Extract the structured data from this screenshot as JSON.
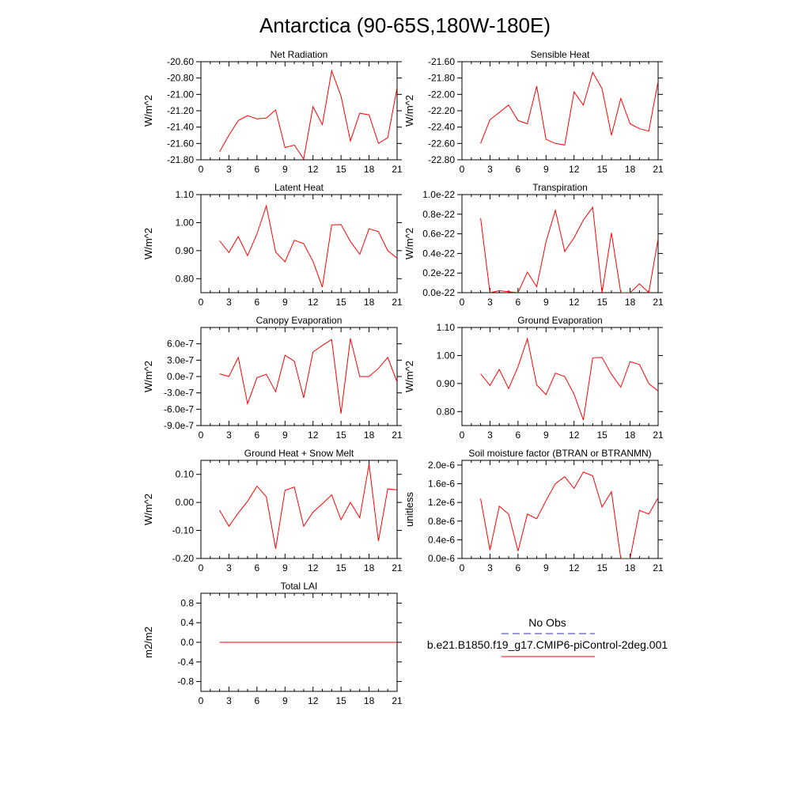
{
  "figure": {
    "title": "Antarctica (90-65S,180W-180E)",
    "legend": {
      "title": "No Obs",
      "entries": [
        {
          "label": "",
          "color": "#3333aa",
          "dash": true
        },
        {
          "label": "b.e21.B1850.f19_g17.CMIP6-piControl-2deg.001",
          "color": "#ff0000",
          "dash": false
        }
      ]
    }
  },
  "chart_data": [
    {
      "type": "line",
      "title": "Net Radiation",
      "ylabel": "W/m^2",
      "xlim": [
        0,
        21
      ],
      "ylim": [
        -21.8,
        -20.6
      ],
      "xticks": [
        0,
        3,
        6,
        9,
        12,
        15,
        18,
        21
      ],
      "yticks": [
        -21.8,
        -21.6,
        -21.4,
        -21.2,
        -21.0,
        -20.8,
        -20.6
      ],
      "ytick_labels": [
        "-21.80",
        "-21.60",
        "-21.40",
        "-21.20",
        "-21.00",
        "-20.80",
        "-20.60"
      ],
      "series": [
        {
          "color": "#ff0000",
          "x": [
            2,
            3,
            4,
            5,
            6,
            7,
            8,
            9,
            10,
            11,
            12,
            13,
            14,
            15,
            16,
            17,
            18,
            19,
            20,
            21
          ],
          "y": [
            -21.7,
            -21.5,
            -21.32,
            -21.26,
            -21.3,
            -21.29,
            -21.19,
            -21.65,
            -21.62,
            -21.79,
            -21.15,
            -21.37,
            -20.71,
            -21.02,
            -21.57,
            -21.23,
            -21.25,
            -21.6,
            -21.53,
            -20.92
          ]
        }
      ]
    },
    {
      "type": "line",
      "title": "Sensible Heat",
      "ylabel": "W/m^2",
      "xlim": [
        0,
        21
      ],
      "ylim": [
        -22.8,
        -21.6
      ],
      "xticks": [
        0,
        3,
        6,
        9,
        12,
        15,
        18,
        21
      ],
      "yticks": [
        -22.8,
        -22.6,
        -22.4,
        -22.2,
        -22.0,
        -21.8,
        -21.6
      ],
      "ytick_labels": [
        "-22.80",
        "-22.60",
        "-22.40",
        "-22.20",
        "-22.00",
        "-21.80",
        "-21.60"
      ],
      "series": [
        {
          "color": "#ff0000",
          "x": [
            2,
            3,
            4,
            5,
            6,
            7,
            8,
            9,
            10,
            11,
            12,
            13,
            14,
            15,
            16,
            17,
            18,
            19,
            20,
            21
          ],
          "y": [
            -22.6,
            -22.31,
            -22.22,
            -22.13,
            -22.32,
            -22.36,
            -21.9,
            -22.55,
            -22.6,
            -22.62,
            -21.97,
            -22.13,
            -21.73,
            -21.93,
            -22.5,
            -22.05,
            -22.36,
            -22.42,
            -22.45,
            -21.84
          ]
        }
      ]
    },
    {
      "type": "line",
      "title": "Latent Heat",
      "ylabel": "W/m^2",
      "xlim": [
        0,
        21
      ],
      "ylim": [
        0.75,
        1.1
      ],
      "xticks": [
        0,
        3,
        6,
        9,
        12,
        15,
        18,
        21
      ],
      "yticks": [
        0.8,
        0.9,
        1.0,
        1.1
      ],
      "ytick_labels": [
        "0.80",
        "0.90",
        "1.00",
        "1.10"
      ],
      "series": [
        {
          "color": "#ff0000",
          "x": [
            2,
            3,
            4,
            5,
            6,
            7,
            8,
            9,
            10,
            11,
            12,
            13,
            14,
            15,
            16,
            17,
            18,
            19,
            20,
            21
          ],
          "y": [
            0.935,
            0.893,
            0.95,
            0.882,
            0.96,
            1.06,
            0.895,
            0.86,
            0.937,
            0.925,
            0.862,
            0.77,
            0.992,
            0.993,
            0.933,
            0.887,
            0.978,
            0.968,
            0.9,
            0.873
          ]
        }
      ]
    },
    {
      "type": "line",
      "title": "Transpiration",
      "ylabel": "W/m^2",
      "xlim": [
        0,
        21
      ],
      "ylim": [
        0.0,
        1.0
      ],
      "xticks": [
        0,
        3,
        6,
        9,
        12,
        15,
        18,
        21
      ],
      "yticks": [
        0.0,
        0.2,
        0.4,
        0.6,
        0.8,
        1.0
      ],
      "ytick_labels": [
        "0.0e-22",
        "0.2e-22",
        "0.4e-22",
        "0.6e-22",
        "0.8e-22",
        "1.0e-22"
      ],
      "series": [
        {
          "color": "#ff0000",
          "x": [
            2,
            3,
            4,
            5,
            6,
            7,
            8,
            9,
            10,
            11,
            12,
            13,
            14,
            15,
            16,
            17,
            18,
            19,
            20,
            21
          ],
          "y": [
            0.76,
            0.0,
            0.02,
            0.01,
            0.0,
            0.21,
            0.06,
            0.52,
            0.84,
            0.42,
            0.56,
            0.74,
            0.87,
            0.0,
            0.61,
            0.0,
            0.0,
            0.09,
            0.0,
            0.55
          ]
        }
      ]
    },
    {
      "type": "line",
      "title": "Canopy Evaporation",
      "ylabel": "W/m^2",
      "xlim": [
        0,
        21
      ],
      "ylim": [
        -9.0,
        9.0
      ],
      "xticks": [
        0,
        3,
        6,
        9,
        12,
        15,
        18,
        21
      ],
      "yticks": [
        -9.0,
        -6.0,
        -3.0,
        0.0,
        3.0,
        6.0
      ],
      "ytick_labels": [
        "-9.0e-7",
        "-6.0e-7",
        "-3.0e-7",
        "0.0e-7",
        "3.0e-7",
        "6.0e-7"
      ],
      "series": [
        {
          "color": "#ff0000",
          "x": [
            2,
            3,
            4,
            5,
            6,
            7,
            8,
            9,
            10,
            11,
            12,
            13,
            14,
            15,
            16,
            17,
            18,
            19,
            20,
            21
          ],
          "y": [
            0.5,
            0.0,
            3.5,
            -5.0,
            -0.2,
            0.4,
            -2.8,
            3.9,
            2.8,
            -3.9,
            4.5,
            5.7,
            6.8,
            -6.8,
            7.0,
            0.0,
            0.0,
            1.5,
            3.5,
            -1.0
          ]
        }
      ]
    },
    {
      "type": "line",
      "title": "Ground Evaporation",
      "ylabel": "W/m^2",
      "xlim": [
        0,
        21
      ],
      "ylim": [
        0.75,
        1.1
      ],
      "xticks": [
        0,
        3,
        6,
        9,
        12,
        15,
        18,
        21
      ],
      "yticks": [
        0.8,
        0.9,
        1.0,
        1.1
      ],
      "ytick_labels": [
        "0.80",
        "0.90",
        "1.00",
        "1.10"
      ],
      "series": [
        {
          "color": "#ff0000",
          "x": [
            2,
            3,
            4,
            5,
            6,
            7,
            8,
            9,
            10,
            11,
            12,
            13,
            14,
            15,
            16,
            17,
            18,
            19,
            20,
            21
          ],
          "y": [
            0.935,
            0.893,
            0.95,
            0.882,
            0.96,
            1.06,
            0.895,
            0.86,
            0.937,
            0.925,
            0.862,
            0.77,
            0.992,
            0.993,
            0.933,
            0.887,
            0.978,
            0.968,
            0.9,
            0.873
          ]
        }
      ]
    },
    {
      "type": "line",
      "title": "Ground Heat + Snow Melt",
      "ylabel": "W/m^2",
      "xlim": [
        0,
        21
      ],
      "ylim": [
        -0.2,
        0.15
      ],
      "xticks": [
        0,
        3,
        6,
        9,
        12,
        15,
        18,
        21
      ],
      "yticks": [
        -0.2,
        -0.1,
        0.0,
        0.1
      ],
      "ytick_labels": [
        "-0.20",
        "-0.10",
        "0.00",
        "0.10"
      ],
      "series": [
        {
          "color": "#ff0000",
          "x": [
            2,
            3,
            4,
            5,
            6,
            7,
            8,
            9,
            10,
            11,
            12,
            13,
            14,
            15,
            16,
            17,
            18,
            19,
            20,
            21
          ],
          "y": [
            -0.028,
            -0.085,
            -0.038,
            0.004,
            0.058,
            0.02,
            -0.165,
            0.043,
            0.055,
            -0.085,
            -0.035,
            -0.005,
            0.027,
            -0.062,
            0.0,
            -0.055,
            0.137,
            -0.138,
            0.048,
            0.045
          ]
        }
      ]
    },
    {
      "type": "line",
      "title": "Soil moisture factor (BTRAN or BTRANMN)",
      "ylabel": "unitless",
      "xlim": [
        0,
        21
      ],
      "ylim": [
        0.0,
        2.1
      ],
      "xticks": [
        0,
        3,
        6,
        9,
        12,
        15,
        18,
        21
      ],
      "yticks": [
        0.0,
        0.4,
        0.8,
        1.2,
        1.6,
        2.0
      ],
      "ytick_labels": [
        "0.0e-6",
        "0.4e-6",
        "0.8e-6",
        "1.2e-6",
        "1.6e-6",
        "2.0e-6"
      ],
      "series": [
        {
          "color": "#ff0000",
          "x": [
            2,
            3,
            4,
            5,
            6,
            7,
            8,
            9,
            10,
            11,
            12,
            13,
            14,
            15,
            16,
            17,
            18,
            19,
            20,
            21
          ],
          "y": [
            1.28,
            0.18,
            1.12,
            0.95,
            0.16,
            0.95,
            0.85,
            1.24,
            1.6,
            1.75,
            1.5,
            1.85,
            1.77,
            1.1,
            1.43,
            0.0,
            0.0,
            1.03,
            0.95,
            1.3
          ]
        }
      ]
    },
    {
      "type": "line",
      "title": "Total LAI",
      "ylabel": "m2/m2",
      "xlim": [
        0,
        21
      ],
      "ylim": [
        -1.0,
        1.0
      ],
      "xticks": [
        0,
        3,
        6,
        9,
        12,
        15,
        18,
        21
      ],
      "yticks": [
        -0.8,
        -0.4,
        0.0,
        0.4,
        0.8
      ],
      "ytick_labels": [
        "-0.8",
        "-0.4",
        "0.0",
        "0.4",
        "0.8"
      ],
      "series": [
        {
          "color": "#ff0000",
          "x": [
            2,
            3,
            4,
            5,
            6,
            7,
            8,
            9,
            10,
            11,
            12,
            13,
            14,
            15,
            16,
            17,
            18,
            19,
            20,
            21
          ],
          "y": [
            0,
            0,
            0,
            0,
            0,
            0,
            0,
            0,
            0,
            0,
            0,
            0,
            0,
            0,
            0,
            0,
            0,
            0,
            0,
            0
          ]
        }
      ]
    }
  ]
}
